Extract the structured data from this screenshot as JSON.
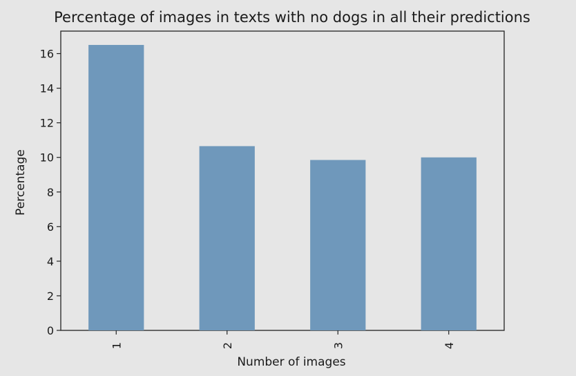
{
  "chart_data": {
    "type": "bar",
    "title": "Percentage of images in texts with no dogs in all their predictions",
    "xlabel": "Number of images",
    "ylabel": "Percentage",
    "categories": [
      "1",
      "2",
      "3",
      "4"
    ],
    "values": [
      16.5,
      10.65,
      9.85,
      10.0
    ],
    "ylim": [
      0,
      17.3
    ],
    "yticks": [
      "0",
      "2",
      "4",
      "6",
      "8",
      "10",
      "12",
      "14",
      "16"
    ],
    "ytick_values": [
      0,
      2,
      4,
      6,
      8,
      10,
      12,
      14,
      16
    ],
    "grid": false,
    "legend": "none",
    "bar_color": "#6f98bb",
    "background_color": "#e6e6e6"
  }
}
